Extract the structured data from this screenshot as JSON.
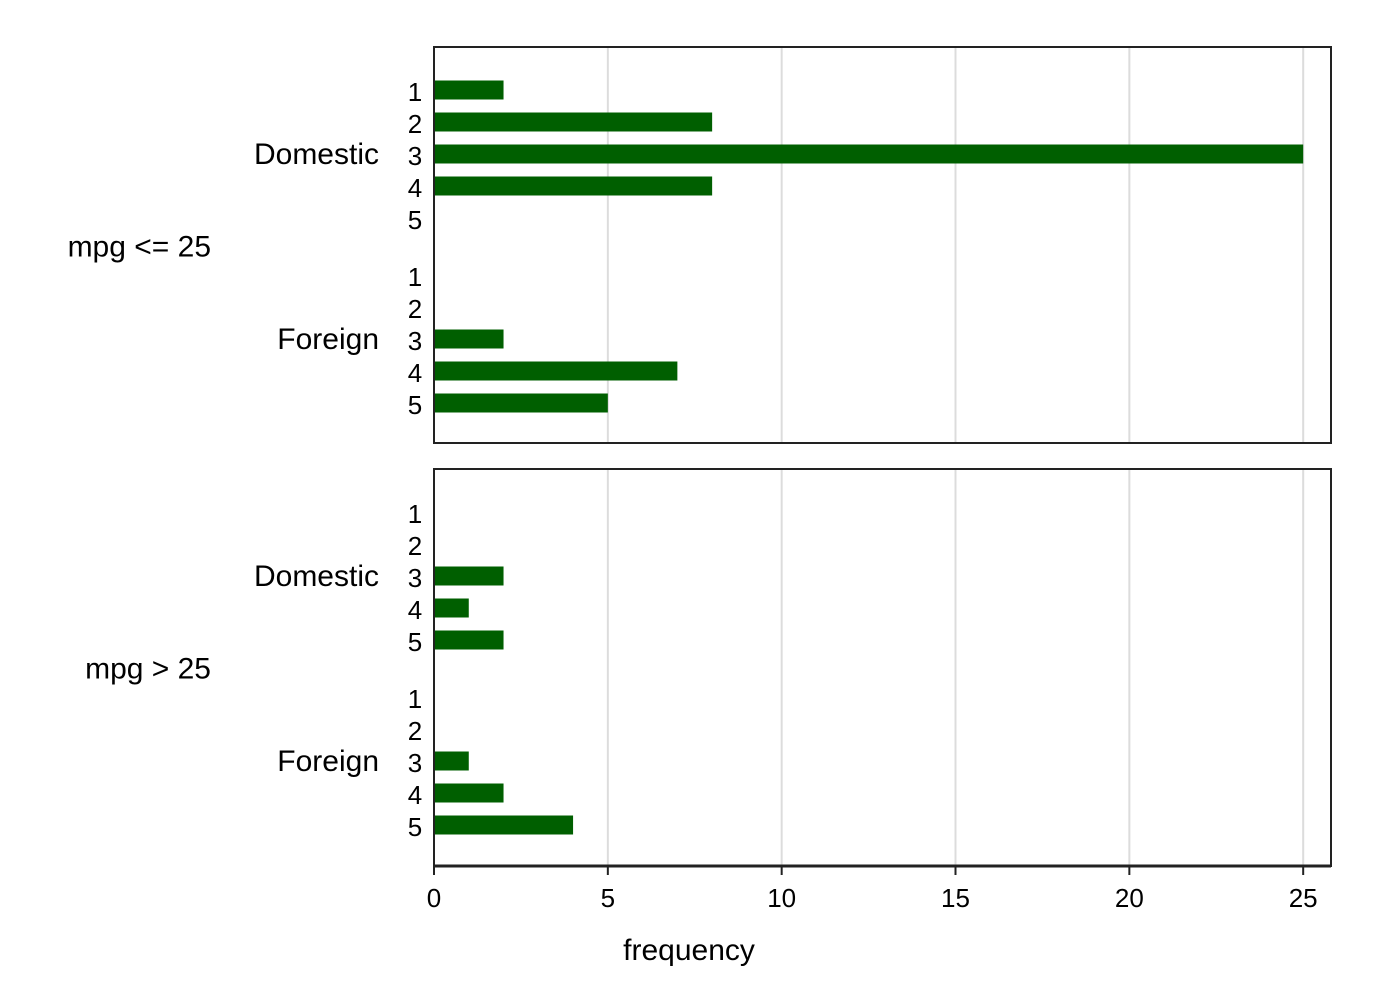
{
  "chart_data": {
    "type": "bar",
    "orientation": "horizontal",
    "xlabel": "frequency",
    "xlim": [
      0,
      25.8
    ],
    "xticks": [
      0,
      5,
      10,
      15,
      20,
      25
    ],
    "grid": true,
    "colors": {
      "bar": "#005f00",
      "grid": "#dcdcdc",
      "frame": "#222222"
    },
    "panels": [
      {
        "label": "mpg <= 25",
        "groups": [
          {
            "label": "Domestic",
            "categories": [
              "1",
              "2",
              "3",
              "4",
              "5"
            ],
            "values": [
              2,
              8,
              25,
              8,
              0
            ]
          },
          {
            "label": "Foreign",
            "categories": [
              "1",
              "2",
              "3",
              "4",
              "5"
            ],
            "values": [
              0,
              0,
              2,
              7,
              5
            ]
          }
        ]
      },
      {
        "label": "mpg > 25",
        "groups": [
          {
            "label": "Domestic",
            "categories": [
              "1",
              "2",
              "3",
              "4",
              "5"
            ],
            "values": [
              0,
              0,
              2,
              1,
              2
            ]
          },
          {
            "label": "Foreign",
            "categories": [
              "1",
              "2",
              "3",
              "4",
              "5"
            ],
            "values": [
              0,
              0,
              1,
              2,
              4
            ]
          }
        ]
      }
    ]
  }
}
